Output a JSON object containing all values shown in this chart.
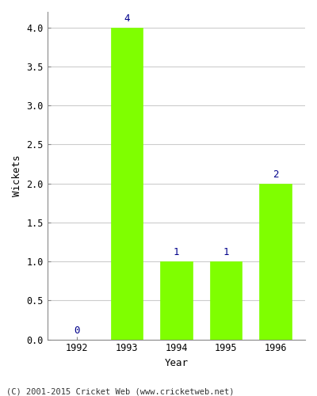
{
  "years": [
    "1992",
    "1993",
    "1994",
    "1995",
    "1996"
  ],
  "values": [
    0,
    4,
    1,
    1,
    2
  ],
  "bar_color": "#7FFF00",
  "bar_edge_color": "#7FFF00",
  "ylabel": "Wickets",
  "xlabel": "Year",
  "ylim": [
    0,
    4.2
  ],
  "yticks": [
    0.0,
    0.5,
    1.0,
    1.5,
    2.0,
    2.5,
    3.0,
    3.5,
    4.0
  ],
  "annotation_color": "#00008B",
  "annotation_fontsize": 9,
  "axis_label_fontsize": 9,
  "tick_fontsize": 8.5,
  "footer_text": "(C) 2001-2015 Cricket Web (www.cricketweb.net)",
  "footer_fontsize": 7.5,
  "background_color": "#ffffff",
  "grid_color": "#cccccc",
  "bar_width": 0.65
}
